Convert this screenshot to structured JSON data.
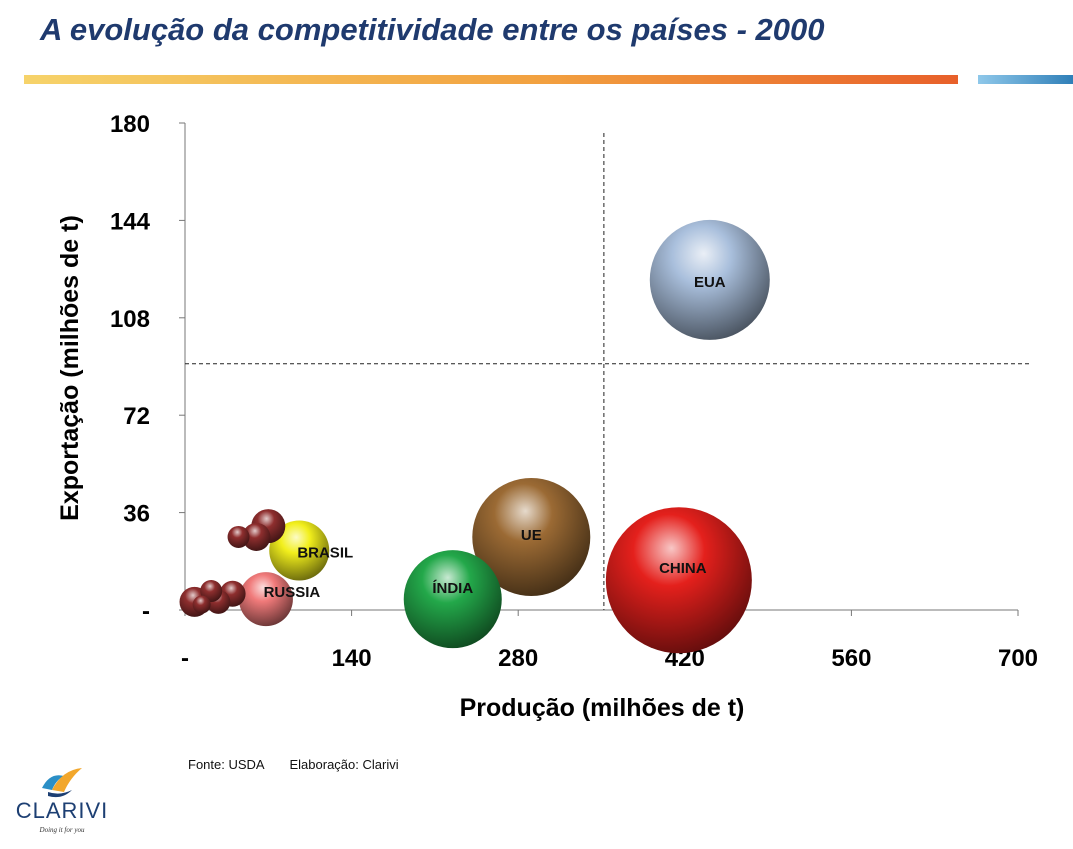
{
  "header": {
    "title": "A evolução da competitividade entre os países - 2000"
  },
  "footer": {
    "source": "Fonte: USDA",
    "credit": "Elaboração: Clarivi"
  },
  "logo": {
    "name": "CLARIVI",
    "tagline": "Doing it for you"
  },
  "chart_data": {
    "type": "bubble",
    "xlabel": "Produção (milhões de t)",
    "ylabel": "Exportação (milhões de t)",
    "xlim": [
      0,
      700
    ],
    "ylim": [
      0,
      180
    ],
    "x_ticks": [
      0,
      140,
      280,
      420,
      560,
      700
    ],
    "x_tick_labels": [
      "-",
      "140",
      "280",
      "420",
      "560",
      "700"
    ],
    "y_ticks": [
      0,
      36,
      72,
      108,
      144,
      180
    ],
    "y_tick_labels": [
      "-",
      "36",
      "72",
      "108",
      "144",
      "180"
    ],
    "reference_lines": {
      "x": 352,
      "y": 91
    },
    "grid": false,
    "series": [
      {
        "label": "EUA",
        "x": 441,
        "y": 122,
        "size": 60,
        "color": "#a9bfdc"
      },
      {
        "label": "CHINA",
        "x": 415,
        "y": 11,
        "size": 73,
        "color": "#e4201c"
      },
      {
        "label": "UE",
        "x": 291,
        "y": 27,
        "size": 59,
        "color": "#9b6a34"
      },
      {
        "label": "ÍNDIA",
        "x": 225,
        "y": 4,
        "size": 49,
        "color": "#23a84a"
      },
      {
        "label": "BRASIL",
        "x": 96,
        "y": 22,
        "size": 30,
        "color": "#f2ef1c"
      },
      {
        "label": "RUSSIA",
        "x": 68,
        "y": 4,
        "size": 27,
        "color": "#f07a7a"
      },
      {
        "label": "",
        "x": 70,
        "y": 31,
        "size": 17,
        "color": "#8e2e2e"
      },
      {
        "label": "",
        "x": 60,
        "y": 27,
        "size": 14,
        "color": "#8e2e2e"
      },
      {
        "label": "",
        "x": 45,
        "y": 27,
        "size": 11,
        "color": "#8e2e2e"
      },
      {
        "label": "",
        "x": 22,
        "y": 7,
        "size": 11,
        "color": "#8e2e2e"
      },
      {
        "label": "",
        "x": 40,
        "y": 6,
        "size": 13,
        "color": "#8e2e2e"
      },
      {
        "label": "",
        "x": 8,
        "y": 3,
        "size": 15,
        "color": "#8e2e2e"
      },
      {
        "label": "",
        "x": 28,
        "y": 3,
        "size": 12,
        "color": "#8e2e2e"
      },
      {
        "label": "",
        "x": 14,
        "y": 2,
        "size": 9,
        "color": "#8e2e2e"
      }
    ]
  }
}
